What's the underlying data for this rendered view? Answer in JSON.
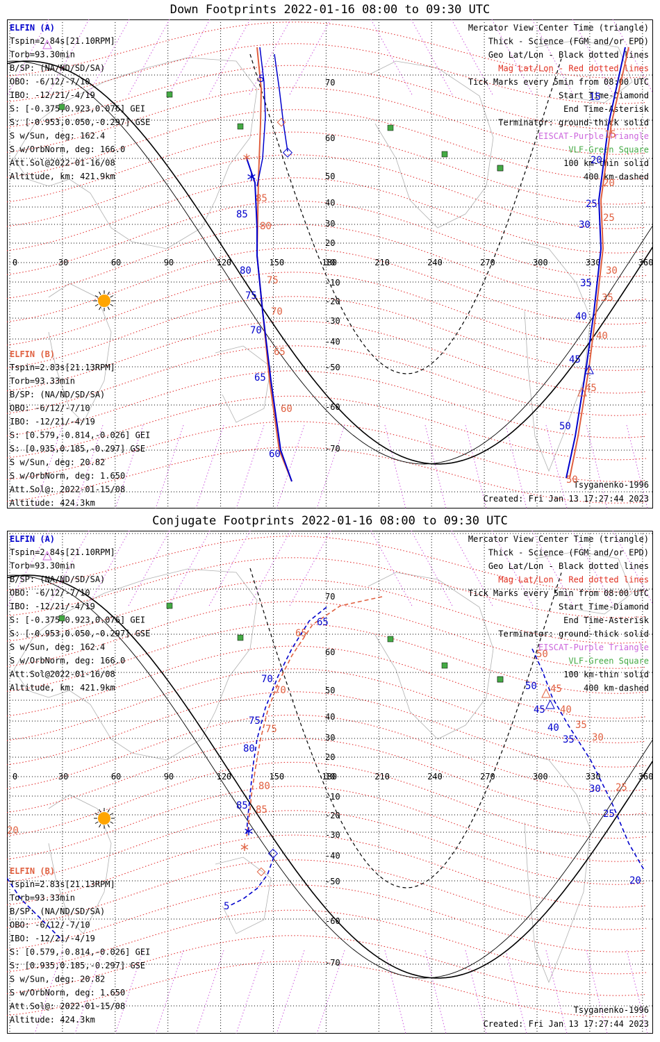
{
  "panels": [
    {
      "id": "down",
      "title": "Down Footprints 2022-01-16 08:00 to 09:30 UTC",
      "created": "Created: Fri Jan 13 17:27:44 2023",
      "model": "Tsyganenko-1996"
    },
    {
      "id": "conjugate",
      "title": "Conjugate Footprints 2022-01-16 08:00 to 09:30 UTC",
      "created": "Created: Fri Jan 13 17:27:44 2023",
      "model": "Tsyganenko-1996"
    }
  ],
  "elfin_a": {
    "name": "ELFIN (A)",
    "lines": [
      "Tspin=2.84s[21.10RPM]",
      "Torb=93.30min",
      "B/SP: (NA/ND/SD/SA)",
      "OBO: -6/12/-7/10",
      "IBO: -12/21/-4/19",
      "S: [-0.375,0.923,0.076] GEI",
      "S: [-0.953,0.050,-0.297] GSE",
      "S w/Sun, deg: 162.4",
      "S w/OrbNorm, deg: 166.0",
      "Att.Sol@2022-01-16/08",
      "Altitude, km: 421.9km"
    ]
  },
  "elfin_b": {
    "name": "ELFIN (B)",
    "lines": [
      "Tspin=2.83s[21.13RPM]",
      "Torb=93.33min",
      "B/SP: (NA/ND/SD/SA)",
      "OBO: -6/12/-7/10",
      "IBO: -12/21/-4/19",
      "S: [0.579,-0.814,-0.026] GEI",
      "S: [0.935,0.185,-0.297] GSE",
      "S w/Sun, deg: 20.82",
      "S w/OrbNorm, deg: 1.650",
      "Att.Sol@: 2022-01-15/08",
      "Altitude: 424.3km"
    ]
  },
  "legend": [
    {
      "text": "Mercator View Center Time (triangle)",
      "color": "#000000"
    },
    {
      "text": "Thick - Science (FGM and/or EPD)",
      "color": "#000000"
    },
    {
      "text": "Geo Lat/Lon - Black dotted lines",
      "color": "#000000"
    },
    {
      "text": "Mag Lat/Lon - Red dotted lines",
      "color": "#e03020"
    },
    {
      "text": "Tick Marks every 5min from 08:00 UTC",
      "color": "#000000"
    },
    {
      "text": "Start Time-Diamond",
      "color": "#000000"
    },
    {
      "text": "End Time-Asterisk",
      "color": "#000000"
    },
    {
      "text": "Terminator: ground-thick solid",
      "color": "#000000"
    },
    {
      "text": "EISCAT-Purple Triangle",
      "color": "#cc66dd"
    },
    {
      "text": "VLF-Green Square",
      "color": "#44aa44"
    },
    {
      "text": "100 km-thin solid",
      "color": "#000000"
    },
    {
      "text": "400 km-dashed",
      "color": "#000000"
    }
  ],
  "axes": {
    "lon_ticks": [
      "0",
      "30",
      "60",
      "90",
      "120",
      "150",
      "180",
      "210",
      "240",
      "270",
      "300",
      "330",
      "360"
    ],
    "lat_ticks": [
      "70",
      "60",
      "50",
      "40",
      "30",
      "20",
      "10",
      "-10",
      "-20",
      "-30",
      "-40",
      "-50",
      "-60",
      "-70"
    ]
  },
  "colors": {
    "elfin_a": "#0000cc",
    "elfin_b": "#e06040",
    "mag_grid": "#e02020",
    "geo_grid": "#000000",
    "terminator": "#000000",
    "sun": "#ffa500",
    "vlf": "#44aa44",
    "eiscat": "#cc66dd"
  },
  "down_tracks": {
    "a_labels": [
      "5",
      "85",
      "80",
      "75",
      "70",
      "65",
      "60",
      "15",
      "20",
      "25",
      "30",
      "35",
      "40",
      "45",
      "50"
    ],
    "b_labels": [
      "85",
      "80",
      "75",
      "70",
      "65",
      "60",
      "15",
      "20",
      "25",
      "30",
      "35",
      "40",
      "45",
      "50"
    ]
  },
  "conj_tracks": {
    "a_labels": [
      "65",
      "70",
      "75",
      "80",
      "85",
      "5",
      "50",
      "45",
      "40",
      "35",
      "30",
      "25",
      "20"
    ],
    "b_labels": [
      "65",
      "70",
      "75",
      "80",
      "85",
      "50",
      "45",
      "40",
      "35",
      "30",
      "25",
      "20"
    ]
  }
}
